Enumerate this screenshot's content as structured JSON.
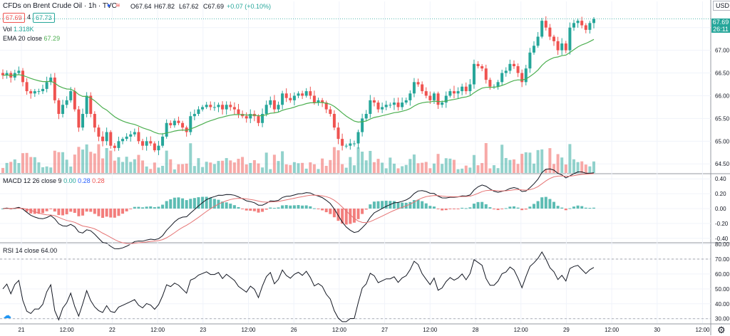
{
  "header": {
    "symbol": "CFDs on Brent Crude Oil · 1h · TVC",
    "o": "O67.64",
    "h": "H67.82",
    "l": "L67.62",
    "c": "C67.69",
    "chg": "+0.07 (+0.10%)",
    "bid": "67.69",
    "spread": "4",
    "ask": "67.73",
    "vol_label": "Vol",
    "vol_value": "1.318K",
    "ema_label": "EMA 20 close",
    "ema_value": "67.29",
    "macd_label": "MACD 12 26 close 9",
    "macd_v1": "0.00",
    "macd_v2": "0.28",
    "macd_v3": "0.28",
    "rsi_label": "RSI 14 close",
    "rsi_value": "64.00",
    "currency": "USD",
    "last_price": "67.69",
    "countdown": "26:11"
  },
  "colors": {
    "up": "#26a69a",
    "down": "#ef5350",
    "ema": "#4caf50",
    "macd": "#131722",
    "signal": "#e57373",
    "rsi": "#131722",
    "grid": "#f0f3fa",
    "sep": "#9598a1",
    "axis_text": "#131722"
  },
  "chart_data": [
    {
      "type": "candlestick",
      "title": "CFDs on Brent Crude Oil",
      "yaxis_ticks": [
        "67.50",
        "67.00",
        "66.50",
        "66.00",
        "65.50",
        "65.00",
        "64.50"
      ],
      "ylim": [
        64.3,
        67.95
      ],
      "x_ticks": [
        "21",
        "12:00",
        "22",
        "12:00",
        "23",
        "12:00",
        "26",
        "12:00",
        "27",
        "12:00",
        "28",
        "12:00",
        "29",
        "12:00",
        "30",
        "12:00"
      ],
      "close": [
        66.45,
        66.5,
        66.4,
        66.5,
        66.55,
        66.3,
        66.1,
        66.05,
        66.1,
        66.1,
        66.15,
        66.3,
        66.4,
        65.9,
        65.6,
        65.8,
        65.9,
        66.1,
        65.7,
        65.3,
        65.6,
        66.0,
        65.6,
        65.3,
        65.1,
        65.0,
        65.2,
        64.9,
        64.85,
        65.0,
        65.05,
        65.1,
        65.15,
        65.2,
        65.0,
        64.9,
        65.0,
        64.95,
        64.8,
        64.9,
        65.1,
        65.4,
        65.35,
        65.45,
        65.4,
        65.3,
        65.2,
        65.55,
        65.6,
        65.7,
        65.75,
        65.8,
        65.75,
        65.75,
        65.8,
        65.7,
        65.8,
        65.75,
        65.7,
        65.6,
        65.55,
        65.5,
        65.6,
        65.55,
        65.4,
        65.6,
        65.8,
        65.9,
        65.7,
        65.8,
        66.05,
        65.95,
        65.9,
        66.0,
        66.05,
        66.0,
        66.1,
        66.0,
        65.85,
        65.9,
        65.85,
        65.7,
        65.6,
        65.3,
        65.05,
        64.9,
        64.9,
        64.95,
        64.95,
        65.2,
        65.5,
        65.6,
        65.9,
        65.85,
        65.7,
        65.75,
        65.8,
        65.8,
        65.85,
        65.75,
        65.85,
        65.9,
        66.05,
        66.3,
        66.25,
        66.1,
        66.0,
        65.9,
        66.05,
        65.8,
        65.85,
        66.0,
        66.1,
        66.05,
        66.1,
        66.2,
        66.1,
        66.25,
        66.7,
        66.65,
        66.6,
        66.35,
        66.2,
        66.2,
        66.3,
        66.5,
        66.55,
        66.7,
        66.65,
        66.5,
        66.3,
        66.6,
        66.95,
        67.1,
        67.3,
        67.65,
        67.5,
        67.3,
        67.2,
        67.0,
        67.15,
        67.0,
        67.5,
        67.6,
        67.65,
        67.55,
        67.45,
        67.6,
        67.69
      ],
      "ema20_last": 67.29,
      "volume_present": true
    },
    {
      "type": "macd",
      "params": "12 26 close 9",
      "values": {
        "histogram": 0.0,
        "macd": 0.28,
        "signal": 0.28
      },
      "yaxis_ticks": [
        "0.40",
        "0.20",
        "0.00",
        "-0.20",
        "-0.40"
      ],
      "ylim": [
        -0.45,
        0.45
      ]
    },
    {
      "type": "rsi",
      "params": "14 close",
      "last": 64.0,
      "yaxis_ticks": [
        "80.00",
        "70.00",
        "60.00",
        "50.00",
        "40.00",
        "30.00"
      ],
      "ylim": [
        27,
        80
      ],
      "bands": [
        70,
        30
      ]
    }
  ]
}
